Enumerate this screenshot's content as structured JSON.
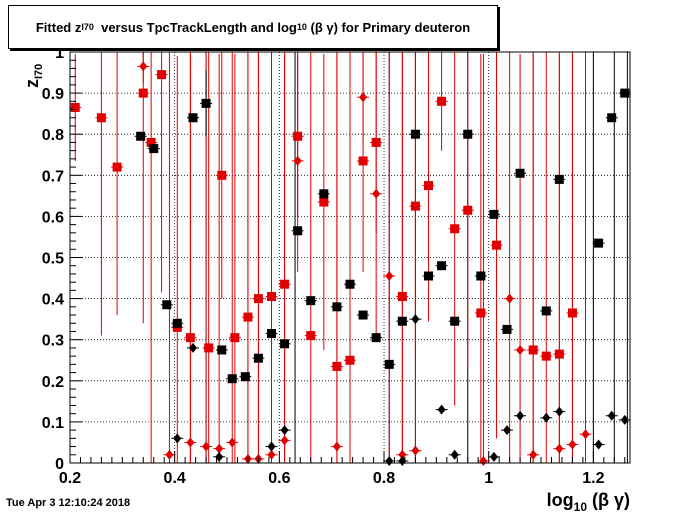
{
  "title": {
    "prefix": "Fitted  z",
    "prefix_sub": "I70",
    "middle": "  versus TpcTrackLength and log",
    "middle_sub": "10",
    "suffix": " (β γ) for Primary deuteron"
  },
  "timestamp": "Tue Apr  3 12:10:24 2018",
  "chart_data": {
    "type": "scatter",
    "xlabel": "log",
    "xlabel_sub": "10",
    "xlabel_suffix": " (β γ)",
    "ylabel": "z",
    "ylabel_sub": "I70",
    "xlim": [
      0.2,
      1.27
    ],
    "ylim": [
      0,
      1
    ],
    "xticks": [
      "0.2",
      "0.4",
      "0.6",
      "0.8",
      "1",
      "1.2"
    ],
    "xtick_values": [
      0.2,
      0.4,
      0.6,
      0.8,
      1.0,
      1.2
    ],
    "yticks": [
      "0",
      "0.1",
      "0.2",
      "0.3",
      "0.4",
      "0.5",
      "0.6",
      "0.7",
      "0.8",
      "0.9",
      "1"
    ],
    "ytick_values": [
      0,
      0.1,
      0.2,
      0.3,
      0.4,
      0.5,
      0.6,
      0.7,
      0.8,
      0.9,
      1.0
    ],
    "grid": true,
    "colors": {
      "red": "#e00000",
      "black": "#000000"
    },
    "series": [
      {
        "color": "red",
        "marker": "square",
        "points": [
          [
            0.21,
            0.865,
            0.13
          ],
          [
            0.26,
            0.84,
            0.53
          ],
          [
            0.29,
            0.72,
            0.36
          ],
          [
            0.34,
            0.9,
            0.56
          ],
          [
            0.355,
            0.78,
            0.78
          ],
          [
            0.375,
            0.945,
            0.53
          ],
          [
            0.405,
            0.33,
            0.66
          ],
          [
            0.43,
            0.305,
            0.69
          ],
          [
            0.465,
            0.28,
            0.72
          ],
          [
            0.49,
            0.7,
            0.3
          ],
          [
            0.515,
            0.305,
            0.69
          ],
          [
            0.54,
            0.355,
            0.64
          ],
          [
            0.56,
            0.4,
            0.6
          ],
          [
            0.585,
            0.405,
            0.6
          ],
          [
            0.61,
            0.435,
            0.56
          ],
          [
            0.635,
            0.795,
            0.2
          ],
          [
            0.66,
            0.31,
            0.69
          ],
          [
            0.685,
            0.635,
            0.36
          ],
          [
            0.71,
            0.235,
            0.77
          ],
          [
            0.735,
            0.25,
            0.75
          ],
          [
            0.76,
            0.735,
            0.27
          ],
          [
            0.785,
            0.78,
            0.22
          ],
          [
            0.835,
            0.405,
            0.6
          ],
          [
            0.86,
            0.625,
            0.37
          ],
          [
            0.885,
            0.675,
            0.33
          ],
          [
            0.91,
            0.88,
            0.12
          ],
          [
            0.935,
            0.57,
            0.43
          ],
          [
            0.96,
            0.615,
            0.38
          ],
          [
            0.985,
            0.365,
            0.63
          ],
          [
            1.015,
            0.53,
            0.47
          ],
          [
            1.085,
            0.275,
            0.72
          ],
          [
            1.11,
            0.26,
            0.74
          ],
          [
            1.135,
            0.265,
            0.73
          ],
          [
            1.16,
            0.365,
            0.63
          ]
        ]
      },
      {
        "color": "red",
        "marker": "diamond",
        "points": [
          [
            0.34,
            0.965,
            0.04
          ],
          [
            0.39,
            0.02,
            0.98
          ],
          [
            0.43,
            0.05,
            0.95
          ],
          [
            0.46,
            0.04,
            0.96
          ],
          [
            0.485,
            0.035,
            0.96
          ],
          [
            0.51,
            0.05,
            0.95
          ],
          [
            0.54,
            0.01,
            0.99
          ],
          [
            0.56,
            0.01,
            0.99
          ],
          [
            0.585,
            0.02,
            0.98
          ],
          [
            0.61,
            0.055,
            0.95
          ],
          [
            0.635,
            0.735,
            0.27
          ],
          [
            0.71,
            0.04,
            0.96
          ],
          [
            0.76,
            0.89,
            0.11
          ],
          [
            0.785,
            0.655,
            0.35
          ],
          [
            0.81,
            0.455,
            0.55
          ],
          [
            0.835,
            0.02,
            0.98
          ],
          [
            0.86,
            0.03,
            0.97
          ],
          [
            0.99,
            0.005,
            0.99
          ],
          [
            1.04,
            0.4,
            0.6
          ],
          [
            1.06,
            0.275,
            0.72
          ],
          [
            1.085,
            0.02,
            0.98
          ],
          [
            1.135,
            0.035,
            0.97
          ],
          [
            1.16,
            0.045,
            0.96
          ],
          [
            1.185,
            0.07,
            0.93
          ]
        ]
      },
      {
        "color": "black",
        "marker": "square",
        "points": [
          [
            0.335,
            0.795,
            0.0
          ],
          [
            0.36,
            0.765,
            0.0
          ],
          [
            0.385,
            0.385,
            0.0
          ],
          [
            0.405,
            0.34,
            0.0
          ],
          [
            0.435,
            0.84,
            0.0
          ],
          [
            0.46,
            0.875,
            0.08
          ],
          [
            0.49,
            0.275,
            0.0
          ],
          [
            0.51,
            0.205,
            0.0
          ],
          [
            0.535,
            0.21,
            0.0
          ],
          [
            0.56,
            0.255,
            0.0
          ],
          [
            0.585,
            0.315,
            0.0
          ],
          [
            0.61,
            0.29,
            0.0
          ],
          [
            0.635,
            0.565,
            0.0
          ],
          [
            0.66,
            0.395,
            0.0
          ],
          [
            0.685,
            0.655,
            0.0
          ],
          [
            0.71,
            0.38,
            0.0
          ],
          [
            0.735,
            0.435,
            0.0
          ],
          [
            0.76,
            0.36,
            0.0
          ],
          [
            0.785,
            0.305,
            0.0
          ],
          [
            0.81,
            0.24,
            0.0
          ],
          [
            0.835,
            0.345,
            0.0
          ],
          [
            0.86,
            0.8,
            0.0
          ],
          [
            0.885,
            0.455,
            0.0
          ],
          [
            0.91,
            0.48,
            0.0
          ],
          [
            0.935,
            0.345,
            0.0
          ],
          [
            0.96,
            0.8,
            0.0
          ],
          [
            0.985,
            0.455,
            0.0
          ],
          [
            1.01,
            0.605,
            0.0
          ],
          [
            1.035,
            0.325,
            0.0
          ],
          [
            1.06,
            0.705,
            0.0
          ],
          [
            1.11,
            0.37,
            0.0
          ],
          [
            1.135,
            0.69,
            0.0
          ],
          [
            1.21,
            0.535,
            0.0
          ],
          [
            1.235,
            0.84,
            0.0
          ],
          [
            1.26,
            0.9,
            0.0
          ]
        ]
      },
      {
        "color": "black",
        "marker": "diamond",
        "points": [
          [
            0.405,
            0.06,
            0.0
          ],
          [
            0.435,
            0.28,
            0.0
          ],
          [
            0.485,
            0.015,
            0.0
          ],
          [
            0.585,
            0.04,
            0.0
          ],
          [
            0.61,
            0.08,
            0.0
          ],
          [
            0.81,
            0.005,
            0.0
          ],
          [
            0.835,
            0.005,
            0.0
          ],
          [
            0.86,
            0.35,
            0.0
          ],
          [
            0.91,
            0.13,
            0.0
          ],
          [
            0.935,
            0.02,
            0.0
          ],
          [
            1.01,
            0.015,
            0.0
          ],
          [
            1.035,
            0.08,
            0.0
          ],
          [
            1.06,
            0.115,
            0.0
          ],
          [
            1.11,
            0.11,
            0.0
          ],
          [
            1.135,
            0.125,
            0.0
          ],
          [
            1.21,
            0.045,
            0.0
          ],
          [
            1.235,
            0.115,
            0.0
          ],
          [
            1.26,
            0.105,
            0.0
          ]
        ]
      }
    ],
    "black_verticals": [
      0.46,
      0.63,
      0.81,
      0.86,
      0.96,
      1.2,
      1.24,
      1.265
    ]
  }
}
